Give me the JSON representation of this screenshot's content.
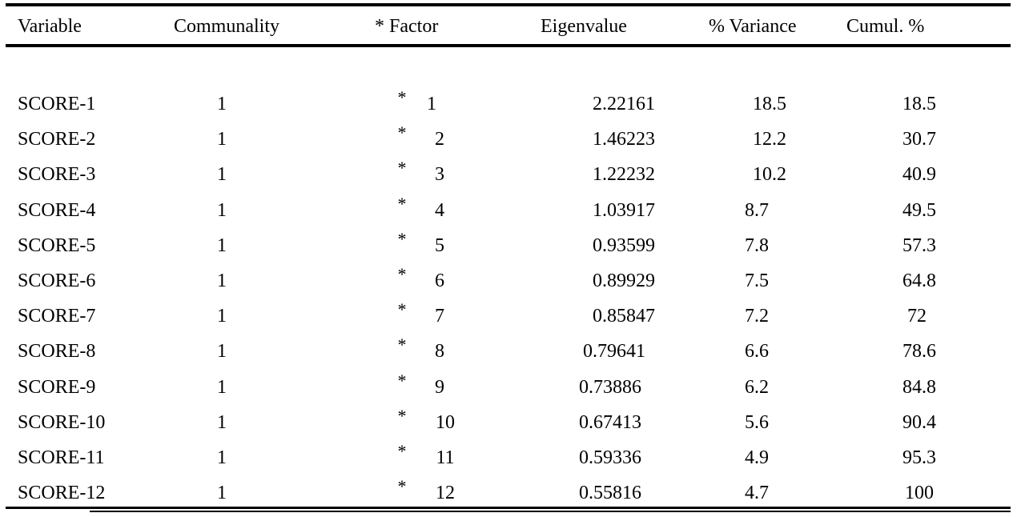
{
  "table": {
    "headers": {
      "variable": "Variable",
      "communality": "Communality",
      "factor": "* Factor",
      "eigenvalue": "Eigenvalue",
      "variance": "% Variance",
      "cumul": "Cumul. %"
    },
    "rows": [
      {
        "variable": "SCORE-1",
        "communality": "1",
        "star": "*",
        "factor": "1",
        "eigenvalue": "2.22161",
        "variance": "18.5",
        "cumul": "18.5"
      },
      {
        "variable": "SCORE-2",
        "communality": "1",
        "star": "*",
        "factor": "2",
        "eigenvalue": "1.46223",
        "variance": "12.2",
        "cumul": "30.7"
      },
      {
        "variable": "SCORE-3",
        "communality": "1",
        "star": "*",
        "factor": "3",
        "eigenvalue": "1.22232",
        "variance": "10.2",
        "cumul": "40.9"
      },
      {
        "variable": "SCORE-4",
        "communality": "1",
        "star": "*",
        "factor": "4",
        "eigenvalue": "1.03917",
        "variance": "8.7",
        "cumul": "49.5"
      },
      {
        "variable": "SCORE-5",
        "communality": "1",
        "star": "*",
        "factor": "5",
        "eigenvalue": "0.93599",
        "variance": "7.8",
        "cumul": "57.3"
      },
      {
        "variable": "SCORE-6",
        "communality": "1",
        "star": "*",
        "factor": "6",
        "eigenvalue": "0.89929",
        "variance": "7.5",
        "cumul": "64.8"
      },
      {
        "variable": "SCORE-7",
        "communality": "1",
        "star": "*",
        "factor": "7",
        "eigenvalue": "0.85847",
        "variance": "7.2",
        "cumul": "72"
      },
      {
        "variable": "SCORE-8",
        "communality": "1",
        "star": "*",
        "factor": "8",
        "eigenvalue": "0.79641",
        "variance": "6.6",
        "cumul": "78.6"
      },
      {
        "variable": "SCORE-9",
        "communality": "1",
        "star": "*",
        "factor": "9",
        "eigenvalue": "0.73886",
        "variance": "6.2",
        "cumul": "84.8"
      },
      {
        "variable": "SCORE-10",
        "communality": "1",
        "star": "*",
        "factor": "10",
        "eigenvalue": "0.67413",
        "variance": "5.6",
        "cumul": "90.4"
      },
      {
        "variable": "SCORE-11",
        "communality": "1",
        "star": "*",
        "factor": "11",
        "eigenvalue": "0.59336",
        "variance": "4.9",
        "cumul": "95.3"
      },
      {
        "variable": "SCORE-12",
        "communality": "1",
        "star": "*",
        "factor": "12",
        "eigenvalue": "0.55816",
        "variance": "4.7",
        "cumul": "100"
      }
    ]
  }
}
